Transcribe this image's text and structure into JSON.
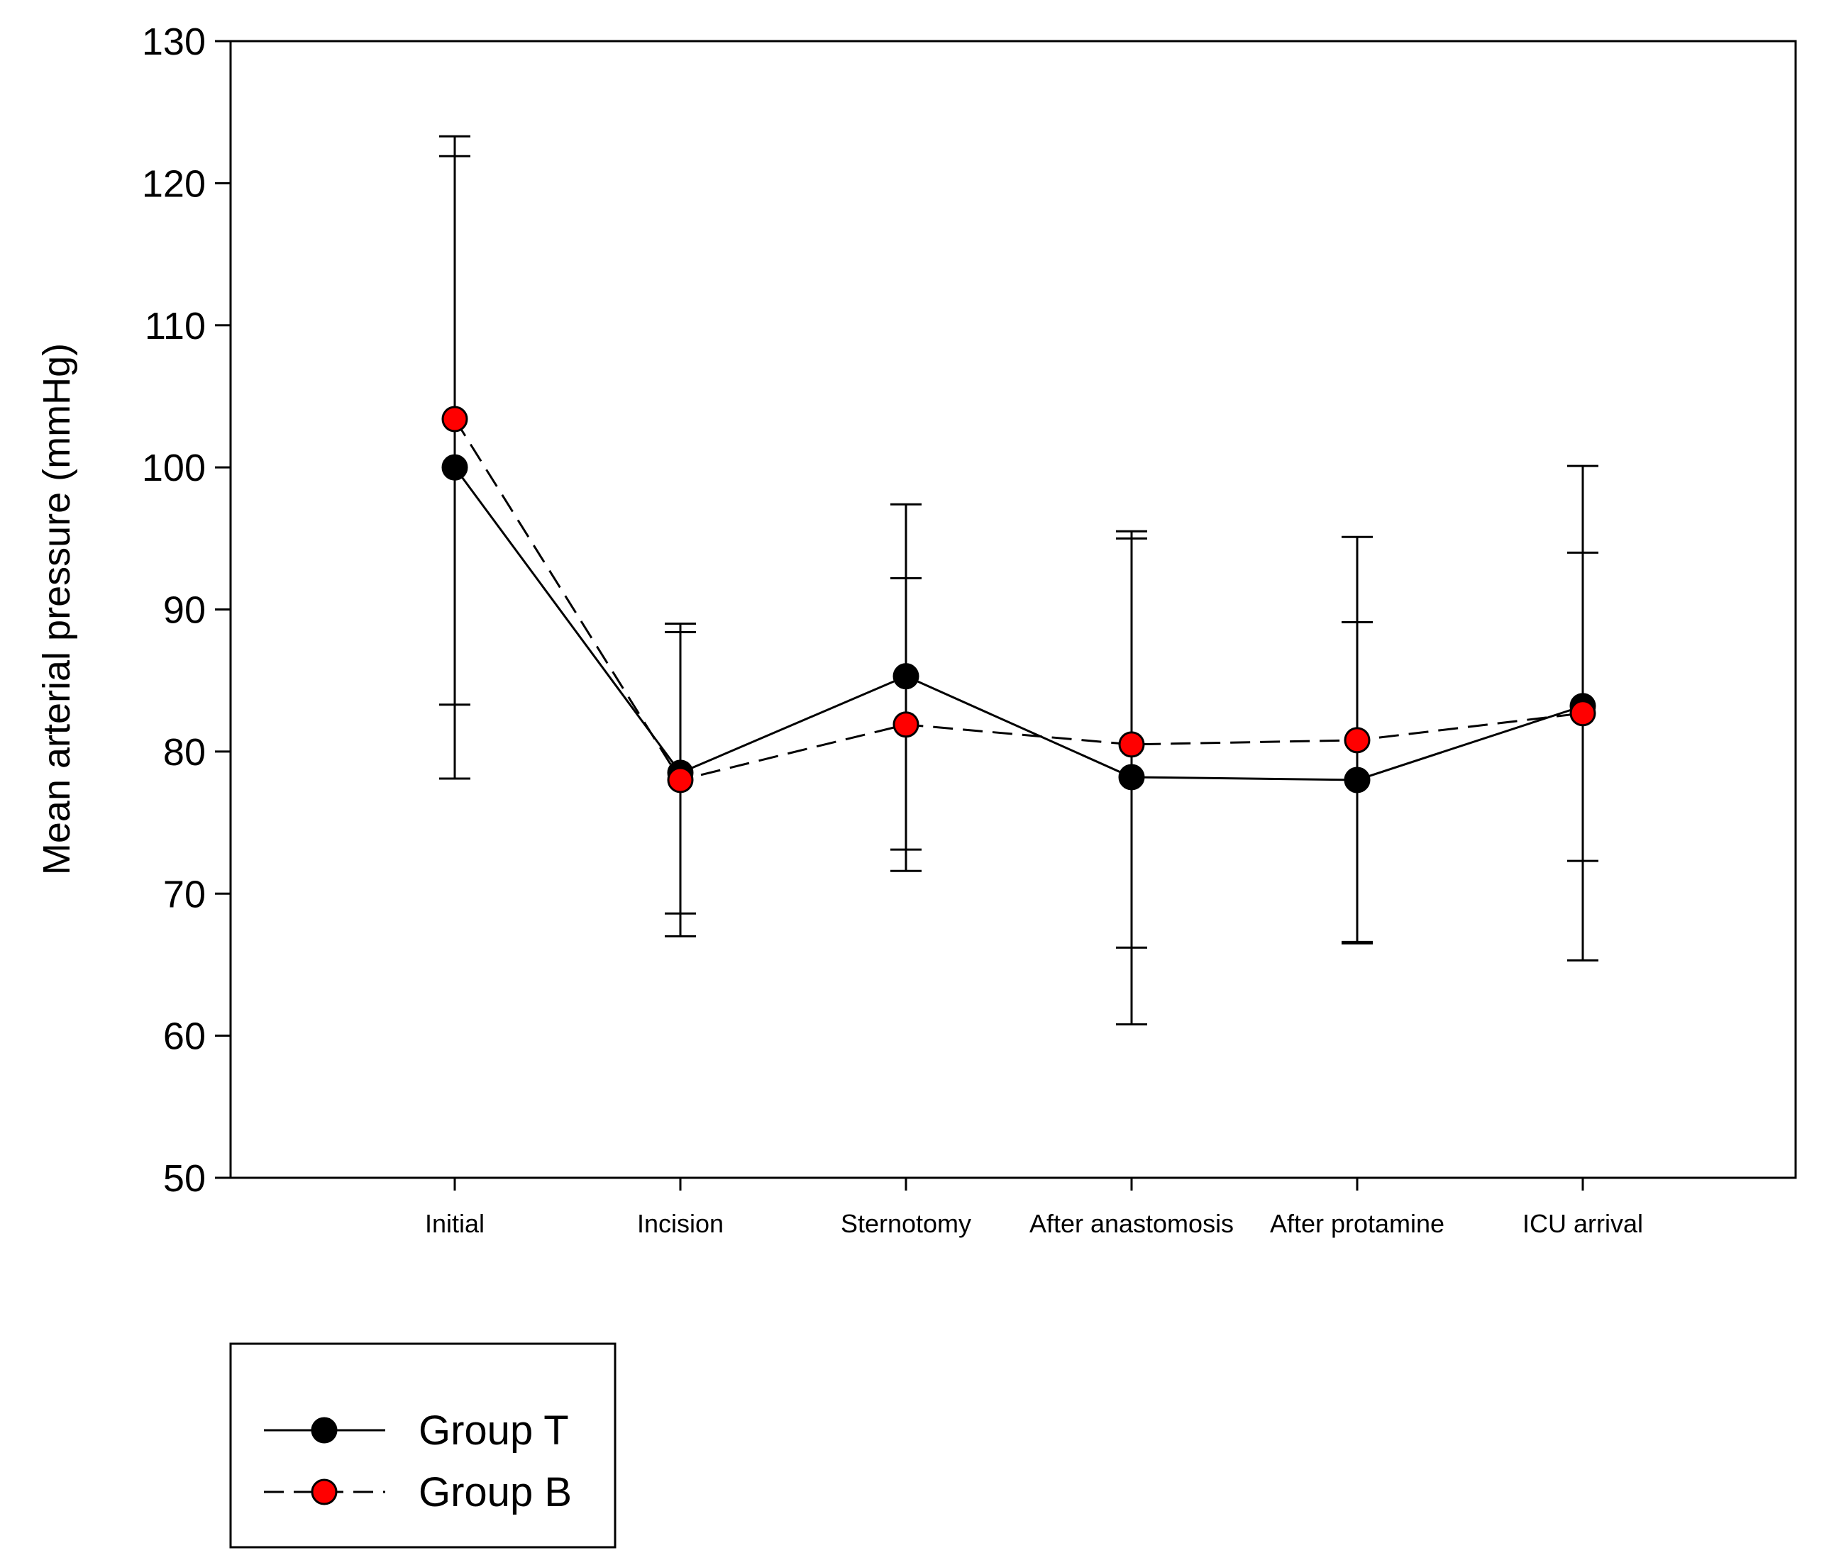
{
  "chart_data": {
    "type": "line",
    "title": "",
    "xlabel": "",
    "ylabel": "Mean arterial pressure (mmHg)",
    "ylim": [
      50,
      130
    ],
    "yticks": [
      50,
      60,
      70,
      80,
      90,
      100,
      110,
      120,
      130
    ],
    "categories": [
      "Initial",
      "Incision",
      "Sternotomy",
      "After anastomosis",
      "After protamine",
      "ICU arrival"
    ],
    "grid": false,
    "legend_position": "bottom-left",
    "series": [
      {
        "name": "Group T",
        "color": "#000000",
        "line_style": "solid",
        "values": [
          100.0,
          78.5,
          85.3,
          78.2,
          78.0,
          83.2
        ],
        "error_low": [
          78.1,
          68.6,
          73.1,
          60.8,
          66.6,
          72.3
        ],
        "error_high": [
          121.9,
          88.4,
          97.4,
          95.5,
          89.1,
          94.0
        ]
      },
      {
        "name": "Group B",
        "color": "#ff0000",
        "line_style": "dashed",
        "values": [
          103.4,
          78.0,
          81.9,
          80.5,
          80.8,
          82.7
        ],
        "error_low": [
          83.3,
          67.0,
          71.6,
          66.2,
          66.5,
          65.3
        ],
        "error_high": [
          123.3,
          89.0,
          92.2,
          95.0,
          95.1,
          100.1
        ]
      }
    ]
  }
}
